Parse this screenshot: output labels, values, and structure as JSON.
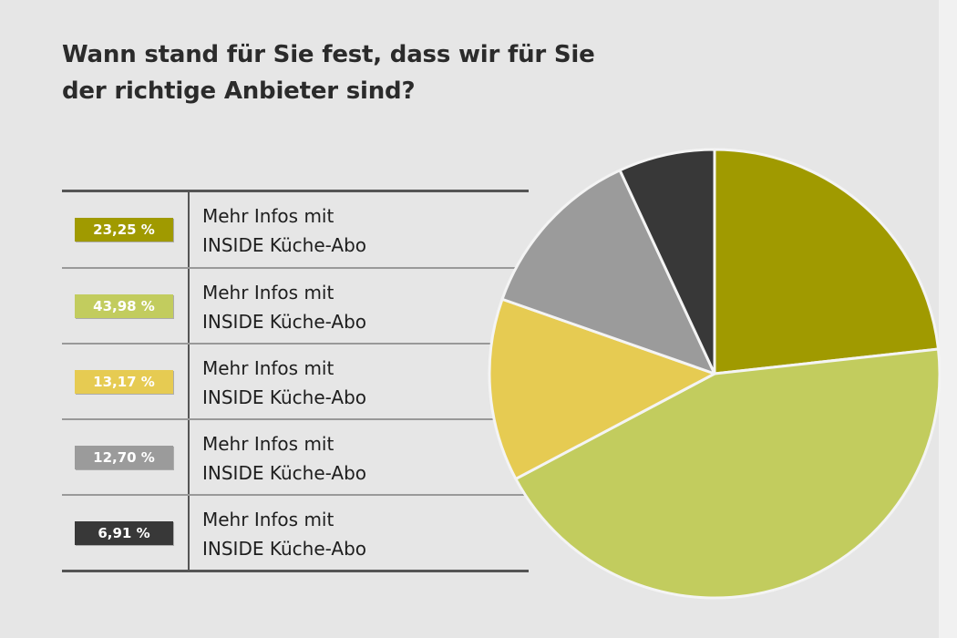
{
  "chart_data": {
    "type": "pie",
    "title": [
      "Wann stand für Sie fest, dass wir für Sie",
      "der richtige Anbieter sind?"
    ],
    "legend_placement": "left",
    "slices": [
      {
        "value": 23.25,
        "value_label": "23,25 %",
        "label_line1": "Mehr Infos mit",
        "label_line2": "INSIDE Küche-Abo",
        "color": "#a09a00"
      },
      {
        "value": 43.98,
        "value_label": "43,98 %",
        "label_line1": "Mehr Infos mit",
        "label_line2": "INSIDE Küche-Abo",
        "color": "#c2cc5e"
      },
      {
        "value": 13.17,
        "value_label": "13,17 %",
        "label_line1": "Mehr Infos mit",
        "label_line2": "INSIDE Küche-Abo",
        "color": "#e6cb52"
      },
      {
        "value": 12.7,
        "value_label": "12,70 %",
        "label_line1": "Mehr Infos mit",
        "label_line2": "INSIDE Küche-Abo",
        "color": "#9b9b9b"
      },
      {
        "value": 6.91,
        "value_label": "6,91 %",
        "label_line1": "Mehr Infos mit",
        "label_line2": "INSIDE Küche-Abo",
        "color": "#383838"
      }
    ]
  }
}
